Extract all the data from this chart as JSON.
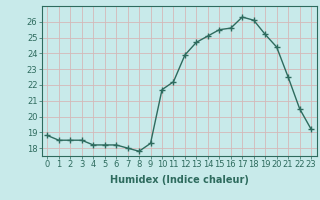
{
  "x": [
    0,
    1,
    2,
    3,
    4,
    5,
    6,
    7,
    8,
    9,
    10,
    11,
    12,
    13,
    14,
    15,
    16,
    17,
    18,
    19,
    20,
    21,
    22,
    23
  ],
  "y": [
    18.8,
    18.5,
    18.5,
    18.5,
    18.2,
    18.2,
    18.2,
    18.0,
    17.8,
    18.3,
    21.7,
    22.2,
    23.9,
    24.7,
    25.1,
    25.5,
    25.6,
    26.3,
    26.1,
    25.2,
    24.4,
    22.5,
    20.5,
    19.2
  ],
  "line_color": "#2e6b5e",
  "marker": "+",
  "marker_size": 4,
  "background_color": "#c8eaea",
  "grid_color": "#d4b8b8",
  "xlabel": "Humidex (Indice chaleur)",
  "xlim": [
    -0.5,
    23.5
  ],
  "ylim": [
    17.5,
    27.0
  ],
  "yticks": [
    18,
    19,
    20,
    21,
    22,
    23,
    24,
    25,
    26
  ],
  "xticks": [
    0,
    1,
    2,
    3,
    4,
    5,
    6,
    7,
    8,
    9,
    10,
    11,
    12,
    13,
    14,
    15,
    16,
    17,
    18,
    19,
    20,
    21,
    22,
    23
  ],
  "tick_label_size": 6,
  "xlabel_size": 7,
  "line_width": 1.0
}
